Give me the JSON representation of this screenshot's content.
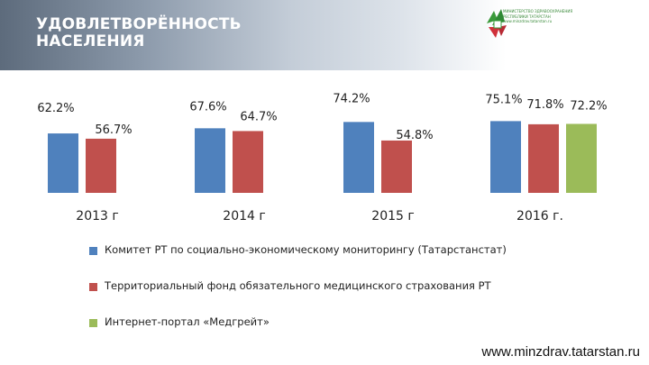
{
  "header": {
    "title": "УДОВЛЕТВОРЁННОСТЬ НАСЕЛЕНИЯ",
    "logo_lines": [
      "МИНИСТЕРСТВО ЗДРАВООХРАНЕНИЯ",
      "РЕСПУБЛИКИ ТАТАРСТАН",
      "www.minzdrav.tatarstan.ru"
    ],
    "logo_icon": "tatarstan-flag-emblem",
    "colors": {
      "banner": "#6f7d8f",
      "logo_green": "#3a9a3a",
      "logo_red": "#d0303a"
    }
  },
  "chart_data": {
    "type": "bar",
    "categories": [
      "2013 г",
      "2014 г",
      "2015 г",
      "2016 г."
    ],
    "series": [
      {
        "name": "Комитет РТ по социально-экономическому мониторингу (Татарстанстат)",
        "color": "#4f81bd",
        "values": [
          62.2,
          67.6,
          74.2,
          75.1
        ],
        "labels": [
          "62.2%",
          "67.6%",
          "74.2%",
          "75.1%"
        ]
      },
      {
        "name": "Территориальный фонд обязательного медицинского страхования РТ",
        "color": "#c0504d",
        "values": [
          56.7,
          64.7,
          54.8,
          71.8
        ],
        "labels": [
          "56.7%",
          "64.7%",
          "54.8%",
          "71.8%"
        ]
      },
      {
        "name": "Интернет-портал «Медгрейт»",
        "color": "#9bbb59",
        "values": [
          null,
          null,
          null,
          72.2
        ],
        "labels": [
          null,
          null,
          null,
          "72.2%"
        ]
      }
    ],
    "title": "",
    "xlabel": "",
    "ylabel": "",
    "grid": false,
    "legend_position": "bottom-left"
  },
  "footer": {
    "url": "www.minzdrav.tatarstan.ru"
  }
}
